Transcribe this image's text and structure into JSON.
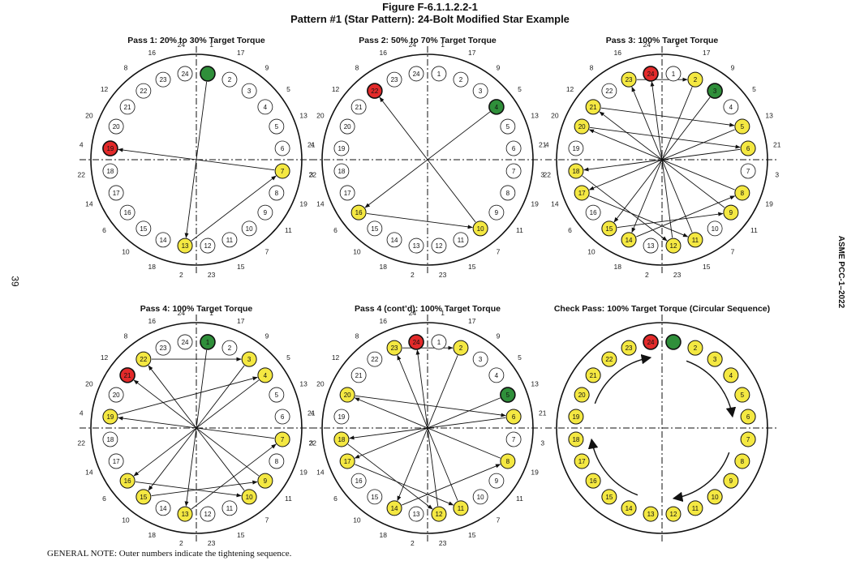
{
  "figure_number": "Figure F-6.1.1.2.2-1",
  "figure_title": "Pattern #1 (Star Pattern): 24-Bolt Modified Star Example",
  "page_number": "39",
  "side_label": "ASME PCC-1–2022",
  "general_note": "GENERAL NOTE: Outer numbers indicate the tightening sequence.",
  "colors": {
    "yellow": "#f4e842",
    "red": "#e32a2a",
    "green": "#2f8f3a",
    "white": "#ffffff",
    "stroke": "#111111"
  },
  "bolt_labels": [
    "1",
    "2",
    "3",
    "4",
    "5",
    "6",
    "7",
    "8",
    "9",
    "10",
    "11",
    "12",
    "13",
    "14",
    "15",
    "16",
    "17",
    "18",
    "19",
    "20",
    "21",
    "22",
    "23",
    "24"
  ],
  "tightening_sequence": [
    "1",
    "17",
    "9",
    "5",
    "13",
    "21",
    "3",
    "19",
    "11",
    "7",
    "15",
    "23",
    "2",
    "18",
    "10",
    "6",
    "14",
    "22",
    "4",
    "20",
    "12",
    "8",
    "16",
    "24"
  ],
  "panels": [
    {
      "title": "Pass 1: 20% to 30% Target Torque",
      "start": 1,
      "end": 19,
      "highlight": {
        "yellow": [
          7,
          13
        ],
        "red": [
          19
        ],
        "green": [
          1
        ]
      },
      "hidden_labels": [
        1
      ],
      "arrows": [
        [
          1,
          13
        ],
        [
          13,
          7
        ],
        [
          7,
          19
        ]
      ]
    },
    {
      "title": "Pass 2: 50% to 70% Target Torque",
      "start": 4,
      "end": 22,
      "highlight": {
        "yellow": [
          10,
          16
        ],
        "red": [
          22
        ],
        "green": [
          4
        ]
      },
      "hidden_labels": [],
      "arrows": [
        [
          4,
          16
        ],
        [
          16,
          10
        ],
        [
          10,
          22
        ]
      ]
    },
    {
      "title": "Pass 3: 100% Target Torque",
      "start": 3,
      "end": 24,
      "highlight": {
        "yellow": [
          2,
          5,
          6,
          8,
          9,
          11,
          12,
          14,
          15,
          17,
          18,
          20,
          21,
          23
        ],
        "red": [
          24
        ],
        "green": [
          3
        ]
      },
      "hidden_labels": [],
      "arrows": [
        [
          3,
          15
        ],
        [
          15,
          9
        ],
        [
          9,
          21
        ],
        [
          21,
          5
        ],
        [
          5,
          17
        ],
        [
          17,
          11
        ],
        [
          11,
          23
        ],
        [
          23,
          2
        ],
        [
          2,
          14
        ],
        [
          14,
          8
        ],
        [
          8,
          20
        ],
        [
          20,
          6
        ],
        [
          6,
          18
        ],
        [
          18,
          12
        ],
        [
          12,
          24
        ]
      ]
    },
    {
      "title": "Pass 4: 100% Target Torque",
      "start": 1,
      "end": 21,
      "highlight": {
        "yellow": [
          3,
          4,
          7,
          9,
          10,
          13,
          15,
          16,
          19,
          22
        ],
        "red": [
          21
        ],
        "green": [
          1
        ]
      },
      "hidden_labels": [],
      "arrows": [
        [
          1,
          13
        ],
        [
          13,
          7
        ],
        [
          7,
          19
        ],
        [
          19,
          4
        ],
        [
          4,
          16
        ],
        [
          16,
          10
        ],
        [
          10,
          22
        ],
        [
          22,
          3
        ],
        [
          3,
          15
        ],
        [
          15,
          9
        ],
        [
          9,
          21
        ]
      ]
    },
    {
      "title": "Pass 4 (cont’d): 100% Target Torque",
      "start": 5,
      "end": 24,
      "highlight": {
        "yellow": [
          2,
          6,
          8,
          11,
          12,
          14,
          17,
          18,
          20,
          23
        ],
        "red": [
          24
        ],
        "green": [
          5
        ]
      },
      "hidden_labels": [],
      "arrows": [
        [
          5,
          17
        ],
        [
          17,
          11
        ],
        [
          11,
          23
        ],
        [
          23,
          2
        ],
        [
          2,
          14
        ],
        [
          14,
          8
        ],
        [
          8,
          20
        ],
        [
          20,
          6
        ],
        [
          6,
          18
        ],
        [
          18,
          12
        ],
        [
          12,
          24
        ]
      ]
    },
    {
      "title": "Check Pass: 100% Target Torque (Circular Sequence)",
      "start": 1,
      "end": 24,
      "highlight": {
        "yellow": [
          2,
          3,
          4,
          5,
          6,
          7,
          8,
          9,
          10,
          11,
          12,
          13,
          14,
          15,
          16,
          17,
          18,
          19,
          20,
          21,
          22,
          23
        ],
        "red": [
          24
        ],
        "green": [
          1
        ]
      },
      "hidden_labels": [
        1
      ],
      "arrows": [],
      "circular": true,
      "hide_outer": true
    }
  ]
}
